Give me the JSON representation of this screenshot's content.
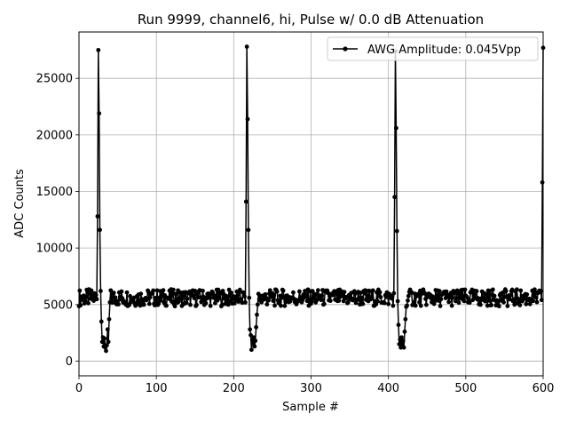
{
  "chart_data": {
    "type": "line",
    "title": "Run 9999, channel6, hi, Pulse w/ 0.0 dB Attenuation",
    "xlabel": "Sample #",
    "ylabel": "ADC Counts",
    "xlim": [
      0,
      600
    ],
    "ylim": [
      -1300,
      29100
    ],
    "xticks": [
      0,
      100,
      200,
      300,
      400,
      500,
      600
    ],
    "yticks": [
      0,
      5000,
      10000,
      15000,
      20000,
      25000
    ],
    "grid": true,
    "legend": {
      "placement": "top-right"
    },
    "series": [
      {
        "name": "AWG Amplitude: 0.045Vpp",
        "color": "#000000",
        "marker": "circle",
        "baseline": 5600,
        "peaks": [
          {
            "x": 24,
            "y": 12800
          },
          {
            "x": 25,
            "y": 27500
          },
          {
            "x": 26,
            "y": 21900
          },
          {
            "x": 27,
            "y": 11600
          },
          {
            "x": 28,
            "y": 6200
          },
          {
            "x": 29,
            "y": 3500
          },
          {
            "x": 30,
            "y": 1700
          },
          {
            "x": 31,
            "y": 2100
          },
          {
            "x": 32,
            "y": 1300
          },
          {
            "x": 33,
            "y": 2000
          },
          {
            "x": 34,
            "y": 1200
          },
          {
            "x": 35,
            "y": 900
          },
          {
            "x": 36,
            "y": 1400
          },
          {
            "x": 37,
            "y": 2800
          },
          {
            "x": 38,
            "y": 1700
          },
          {
            "x": 39,
            "y": 3700
          },
          {
            "x": 40,
            "y": 5200
          },
          {
            "x": 216,
            "y": 14100
          },
          {
            "x": 217,
            "y": 27800
          },
          {
            "x": 218,
            "y": 21400
          },
          {
            "x": 219,
            "y": 11600
          },
          {
            "x": 220,
            "y": 5600
          },
          {
            "x": 221,
            "y": 2800
          },
          {
            "x": 222,
            "y": 2300
          },
          {
            "x": 223,
            "y": 1000
          },
          {
            "x": 224,
            "y": 1900
          },
          {
            "x": 225,
            "y": 1600
          },
          {
            "x": 226,
            "y": 2100
          },
          {
            "x": 227,
            "y": 1300
          },
          {
            "x": 228,
            "y": 1800
          },
          {
            "x": 229,
            "y": 3000
          },
          {
            "x": 230,
            "y": 4100
          },
          {
            "x": 231,
            "y": 5000
          },
          {
            "x": 408,
            "y": 14500
          },
          {
            "x": 409,
            "y": 27400
          },
          {
            "x": 410,
            "y": 20600
          },
          {
            "x": 411,
            "y": 11500
          },
          {
            "x": 412,
            "y": 5300
          },
          {
            "x": 413,
            "y": 3200
          },
          {
            "x": 414,
            "y": 1500
          },
          {
            "x": 415,
            "y": 1900
          },
          {
            "x": 416,
            "y": 1200
          },
          {
            "x": 417,
            "y": 2100
          },
          {
            "x": 418,
            "y": 1300
          },
          {
            "x": 419,
            "y": 1800
          },
          {
            "x": 420,
            "y": 1200
          },
          {
            "x": 421,
            "y": 2600
          },
          {
            "x": 422,
            "y": 3700
          },
          {
            "x": 423,
            "y": 4800
          },
          {
            "x": 599,
            "y": 15800
          },
          {
            "x": 600,
            "y": 27700
          }
        ]
      }
    ]
  }
}
